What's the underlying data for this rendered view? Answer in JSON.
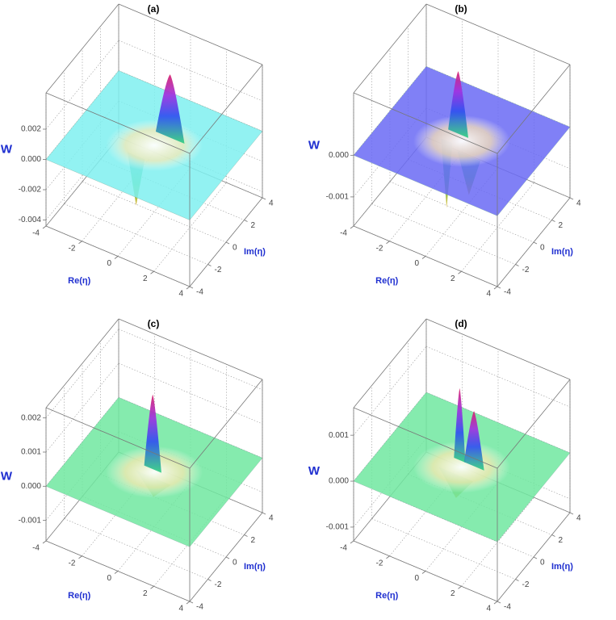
{
  "chart_data": [
    {
      "type": "surface3d",
      "title": "(a)",
      "xlabel": "Re(η)",
      "ylabel": "Im(η)",
      "zlabel": "W",
      "color": "#7ff0f0",
      "xlim": [
        -4,
        4
      ],
      "xticks": [
        -4,
        -2,
        0,
        2,
        4
      ],
      "ylim": [
        -4,
        4
      ],
      "yticks": [
        -4,
        -2,
        0,
        2,
        4
      ],
      "zlim": [
        -0.0044,
        0.0044
      ],
      "zticks": [
        0.002,
        {
          "value": 0,
          "label": "0.000"
        },
        -0.002,
        -0.004
      ]
    },
    {
      "type": "surface3d",
      "title": "(b)",
      "xlabel": "Re(η)",
      "ylabel": "Im(η)",
      "zlabel": "W",
      "color": "#6a6af5",
      "xlim": [
        -4,
        4
      ],
      "xticks": [
        -4,
        -2,
        0,
        2,
        4
      ],
      "ylim": [
        -4,
        4
      ],
      "yticks": [
        -4,
        -2,
        0,
        2,
        4
      ],
      "zlim": [
        -0.0017,
        0.0015
      ],
      "zticks": [
        {
          "value": 0,
          "label": "0.000"
        },
        -0.001
      ]
    },
    {
      "type": "surface3d",
      "title": "(c)",
      "xlabel": "Re(η)",
      "ylabel": "Im(η)",
      "zlabel": "W",
      "color": "#70e8a0",
      "xlim": [
        -4,
        4
      ],
      "xticks": [
        -4,
        -2,
        0,
        2,
        4
      ],
      "ylim": [
        -4,
        4
      ],
      "yticks": [
        -4,
        -2,
        0,
        2,
        4
      ],
      "zlim": [
        -0.0016,
        0.0023
      ],
      "zticks": [
        0.002,
        0.001,
        {
          "value": 0,
          "label": "0.000"
        },
        -0.001
      ]
    },
    {
      "type": "surface3d",
      "title": "(d)",
      "xlabel": "Re(η)",
      "ylabel": "Im(η)",
      "zlabel": "W",
      "color": "#70e8a0",
      "xlim": [
        -4,
        4
      ],
      "xticks": [
        -4,
        -2,
        0,
        2,
        4
      ],
      "ylim": [
        -4,
        4
      ],
      "yticks": [
        -4,
        -2,
        0,
        2,
        4
      ],
      "zlim": [
        -0.0013,
        0.0016
      ],
      "zticks": [
        0.001,
        {
          "value": 0,
          "label": "0.000"
        },
        -0.001
      ]
    }
  ]
}
